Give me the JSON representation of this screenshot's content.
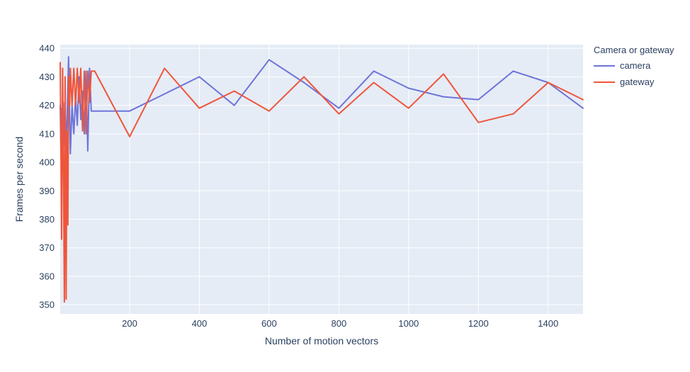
{
  "chart_data": {
    "type": "line",
    "title": "",
    "xlabel": "Number of motion vectors",
    "ylabel": "Frames per second",
    "legend_title": "Camera or gateway",
    "legend_position": "right-top",
    "grid": true,
    "xlim": [
      1,
      1500
    ],
    "ylim": [
      346.8,
      441.3
    ],
    "xticks": [
      200,
      400,
      600,
      800,
      1000,
      1200,
      1400
    ],
    "yticks": [
      350,
      360,
      370,
      380,
      390,
      400,
      410,
      420,
      430,
      440
    ],
    "colors": {
      "plot_bg": "#e5ecf6",
      "grid": "#ffffff",
      "text": "#2a3f5f",
      "paper": "#ffffff",
      "camera": "#6e74d8",
      "gateway": "#ef553b"
    },
    "series": [
      {
        "name": "camera",
        "color": "#6e74d8",
        "points": [
          [
            1,
            420
          ],
          [
            3,
            404
          ],
          [
            5,
            419
          ],
          [
            8,
            404
          ],
          [
            10,
            421
          ],
          [
            13,
            406
          ],
          [
            15,
            418
          ],
          [
            18,
            408
          ],
          [
            20,
            412
          ],
          [
            25,
            437
          ],
          [
            30,
            403
          ],
          [
            35,
            420
          ],
          [
            40,
            410
          ],
          [
            45,
            423
          ],
          [
            50,
            413
          ],
          [
            55,
            430
          ],
          [
            60,
            415
          ],
          [
            65,
            425
          ],
          [
            70,
            410
          ],
          [
            75,
            432
          ],
          [
            80,
            404
          ],
          [
            85,
            433
          ],
          [
            90,
            418
          ],
          [
            100,
            418
          ],
          [
            200,
            418
          ],
          [
            300,
            424
          ],
          [
            400,
            430
          ],
          [
            500,
            420
          ],
          [
            600,
            436
          ],
          [
            700,
            428
          ],
          [
            800,
            419
          ],
          [
            900,
            432
          ],
          [
            1000,
            426
          ],
          [
            1100,
            423
          ],
          [
            1200,
            422
          ],
          [
            1300,
            432
          ],
          [
            1400,
            428
          ],
          [
            1500,
            419
          ]
        ]
      },
      {
        "name": "gateway",
        "color": "#ef553b",
        "points": [
          [
            1,
            435
          ],
          [
            3,
            404
          ],
          [
            5,
            373
          ],
          [
            8,
            433
          ],
          [
            10,
            404
          ],
          [
            13,
            351
          ],
          [
            15,
            430
          ],
          [
            18,
            352
          ],
          [
            20,
            411
          ],
          [
            23,
            378
          ],
          [
            25,
            430
          ],
          [
            28,
            420
          ],
          [
            30,
            433
          ],
          [
            35,
            420
          ],
          [
            40,
            433
          ],
          [
            45,
            420
          ],
          [
            50,
            433
          ],
          [
            55,
            421
          ],
          [
            60,
            433
          ],
          [
            65,
            411
          ],
          [
            70,
            432
          ],
          [
            75,
            410
          ],
          [
            80,
            432
          ],
          [
            85,
            421
          ],
          [
            90,
            432
          ],
          [
            100,
            432
          ],
          [
            200,
            409
          ],
          [
            300,
            433
          ],
          [
            400,
            419
          ],
          [
            500,
            425
          ],
          [
            600,
            418
          ],
          [
            700,
            430
          ],
          [
            800,
            417
          ],
          [
            900,
            428
          ],
          [
            1000,
            419
          ],
          [
            1100,
            431
          ],
          [
            1200,
            414
          ],
          [
            1300,
            417
          ],
          [
            1400,
            428
          ],
          [
            1500,
            422
          ]
        ]
      }
    ]
  }
}
